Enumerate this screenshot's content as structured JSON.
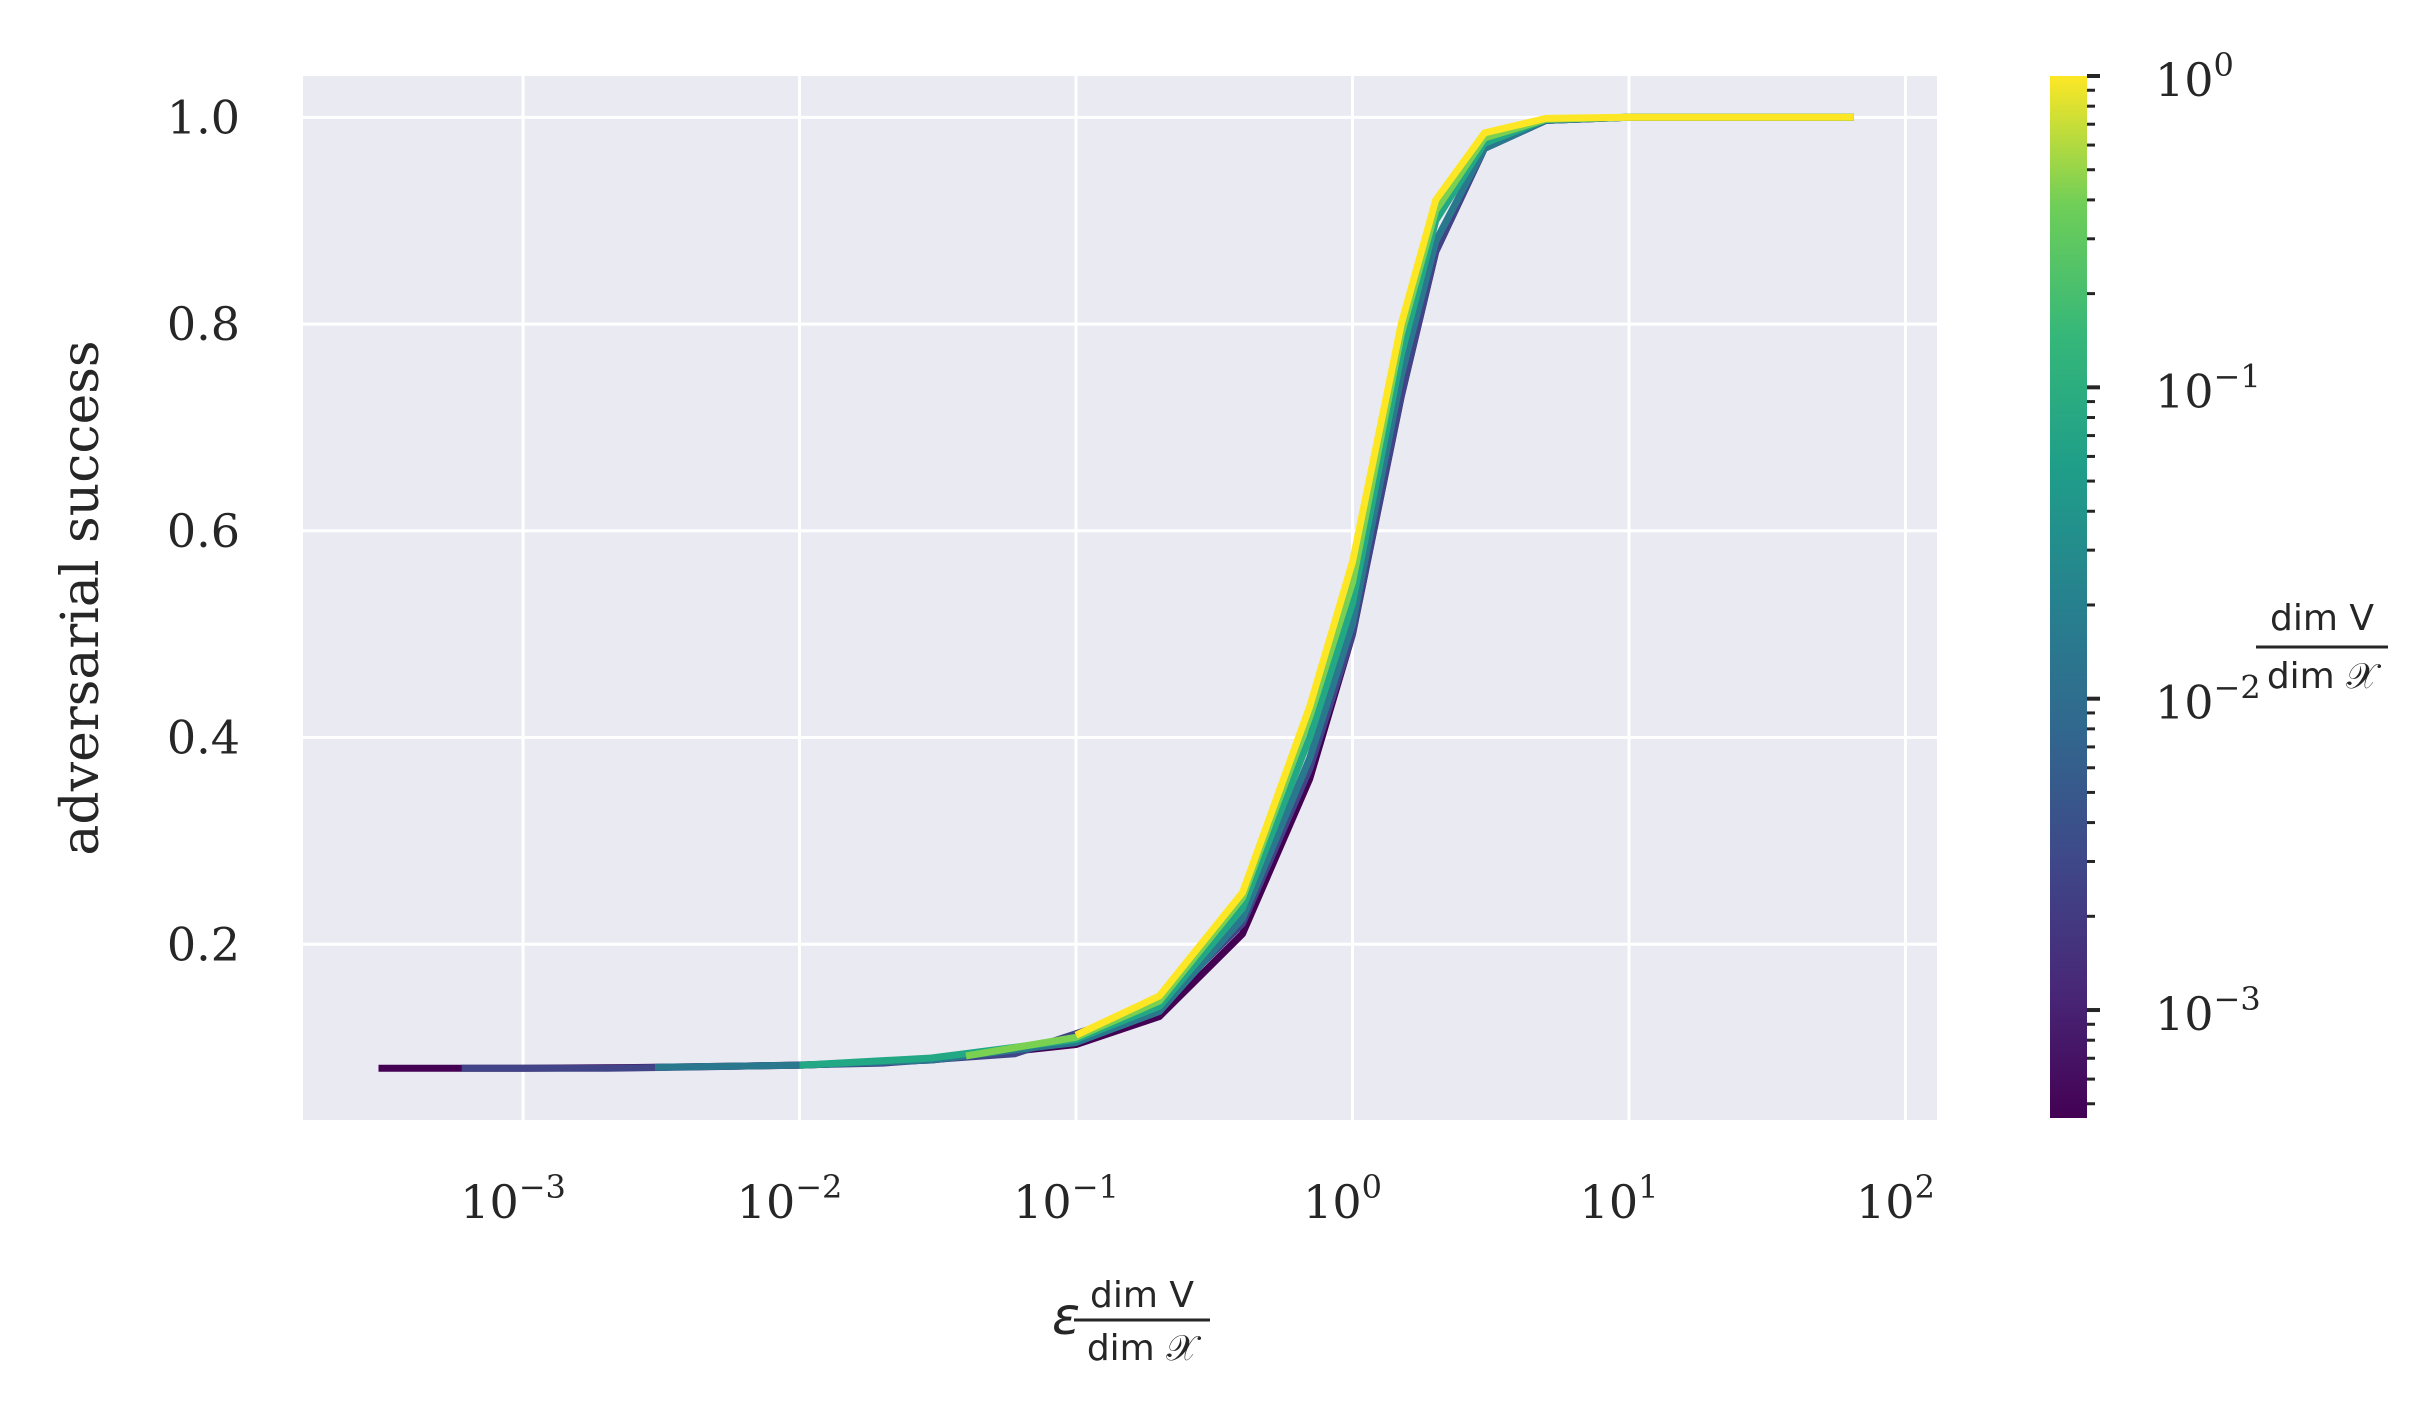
{
  "chart_data": {
    "type": "line",
    "title": "",
    "xlabel": "ε dim V / dim 𝒳",
    "xlabel_parts": {
      "symbol": "ε",
      "numerator": "dim V",
      "denominator": "dim 𝒳"
    },
    "ylabel": "adversarial success",
    "xscale": "log",
    "xlim": [
      0.00016,
      130
    ],
    "ylim": [
      0.03,
      1.04
    ],
    "x_ticks": [
      {
        "base": "10",
        "exp": "−3"
      },
      {
        "base": "10",
        "exp": "−2"
      },
      {
        "base": "10",
        "exp": "−1"
      },
      {
        "base": "10",
        "exp": "0"
      },
      {
        "base": "10",
        "exp": "1"
      },
      {
        "base": "10",
        "exp": "2"
      }
    ],
    "y_ticks": [
      "0.2",
      "0.4",
      "0.6",
      "0.8",
      "1.0"
    ],
    "y_tick_values": [
      0.2,
      0.4,
      0.6,
      0.8,
      1.0
    ],
    "grid": true,
    "background": "#eaeaf2",
    "colormap": "viridis",
    "colorbar": {
      "label_parts": {
        "numerator": "dim V",
        "denominator": "dim 𝒳"
      },
      "scale": "log",
      "range": [
        0.00045,
        1.0
      ],
      "ticks": [
        {
          "base": "10",
          "exp": "0",
          "value": 1.0
        },
        {
          "base": "10",
          "exp": "−1",
          "value": 0.1
        },
        {
          "base": "10",
          "exp": "−2",
          "value": 0.01
        },
        {
          "base": "10",
          "exp": "−3",
          "value": 0.001
        }
      ]
    },
    "series": [
      {
        "ratio": 0.0005,
        "color": "#440154",
        "x": [
          0.0003,
          0.001,
          0.003,
          0.01,
          0.03,
          0.1,
          0.2,
          0.4,
          0.7,
          1.0,
          1.5,
          2.0,
          3.0,
          5.0,
          10,
          30,
          65
        ],
        "y": [
          0.08,
          0.08,
          0.081,
          0.083,
          0.088,
          0.103,
          0.13,
          0.21,
          0.36,
          0.5,
          0.73,
          0.87,
          0.97,
          0.997,
          1.0,
          1.0,
          1.0
        ]
      },
      {
        "ratio": 0.002,
        "color": "#414487",
        "x": [
          0.0006,
          0.002,
          0.006,
          0.02,
          0.06,
          0.2,
          0.4,
          0.7,
          1.0,
          1.5,
          2.0,
          3.0,
          5.0,
          10,
          30,
          65
        ],
        "y": [
          0.08,
          0.08,
          0.082,
          0.085,
          0.094,
          0.14,
          0.22,
          0.37,
          0.5,
          0.73,
          0.87,
          0.97,
          0.997,
          1.0,
          1.0,
          1.0
        ]
      },
      {
        "ratio": 0.008,
        "color": "#2a788e",
        "x": [
          0.003,
          0.01,
          0.03,
          0.1,
          0.2,
          0.4,
          0.7,
          1.0,
          1.5,
          2.0,
          3.0,
          5.0,
          10,
          30,
          65
        ],
        "y": [
          0.081,
          0.083,
          0.088,
          0.105,
          0.135,
          0.225,
          0.38,
          0.51,
          0.75,
          0.88,
          0.97,
          0.997,
          1.0,
          1.0,
          1.0
        ]
      },
      {
        "ratio": 0.03,
        "color": "#22a884",
        "x": [
          0.01,
          0.03,
          0.1,
          0.2,
          0.4,
          0.7,
          1.0,
          1.5,
          2.0,
          3.0,
          5.0,
          10,
          30,
          65
        ],
        "y": [
          0.083,
          0.09,
          0.108,
          0.14,
          0.235,
          0.4,
          0.53,
          0.77,
          0.9,
          0.975,
          0.998,
          1.0,
          1.0,
          1.0
        ]
      },
      {
        "ratio": 0.12,
        "color": "#7ad151",
        "x": [
          0.04,
          0.1,
          0.2,
          0.4,
          0.7,
          1.0,
          1.5,
          2.0,
          3.0,
          5.0,
          10,
          30,
          65
        ],
        "y": [
          0.092,
          0.11,
          0.145,
          0.245,
          0.42,
          0.55,
          0.79,
          0.91,
          0.98,
          0.998,
          1.0,
          1.0,
          1.0
        ]
      },
      {
        "ratio": 0.5,
        "color": "#fde725",
        "x": [
          0.1,
          0.2,
          0.4,
          0.7,
          1.0,
          1.5,
          2.0,
          3.0,
          5.0,
          10,
          30,
          65
        ],
        "y": [
          0.112,
          0.15,
          0.25,
          0.43,
          0.57,
          0.8,
          0.92,
          0.985,
          0.999,
          1.0,
          1.0,
          1.0
        ]
      }
    ]
  }
}
